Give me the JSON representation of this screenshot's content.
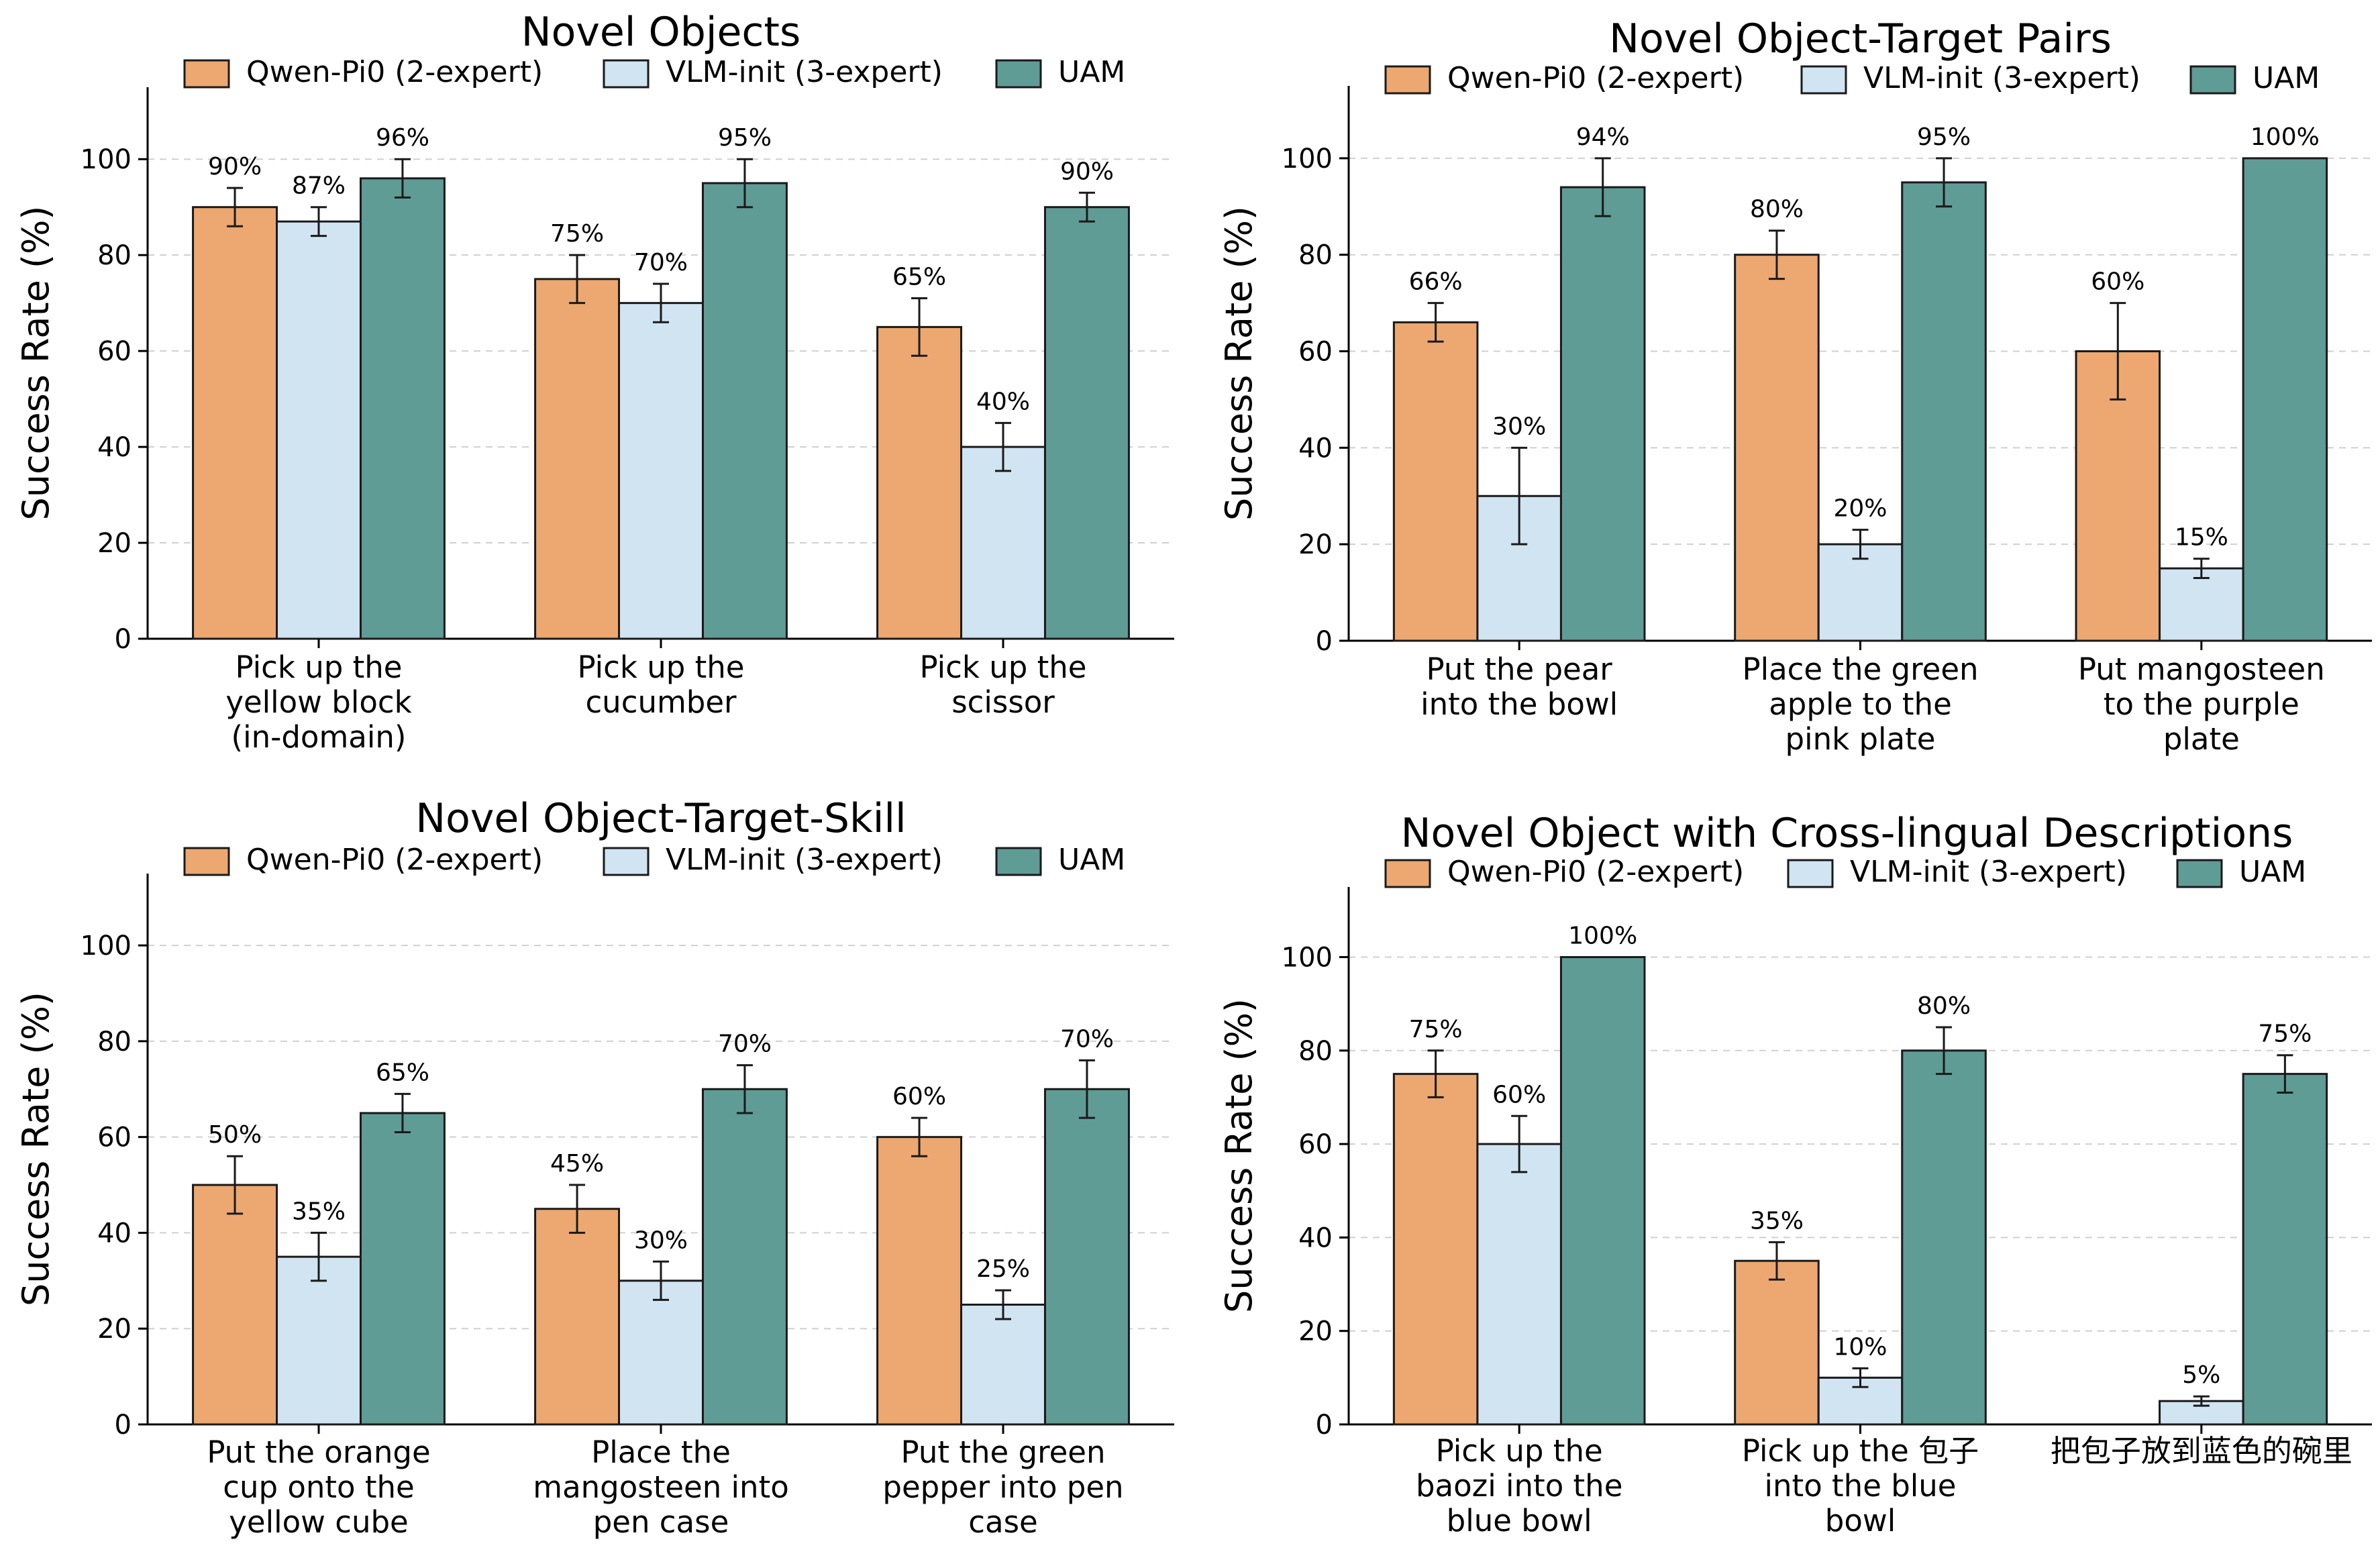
{
  "colors": {
    "Qwen-Pi0 (2-expert)": "#eca870",
    "VLM-init (3-expert)": "#d1e4f2",
    "UAM": "#5f9c95"
  },
  "chart_data": [
    {
      "type": "bar",
      "title": "Novel Objects",
      "ylabel": "Success Rate (%)",
      "ylim": [
        0,
        115
      ],
      "yticks": [
        0,
        20,
        40,
        60,
        80,
        100
      ],
      "grid": true,
      "legend": "top",
      "categories": [
        [
          "Pick up the",
          "yellow block",
          "(in-domain)"
        ],
        [
          "Pick up the",
          "cucumber"
        ],
        [
          "Pick up the",
          "scissor"
        ]
      ],
      "series": [
        {
          "name": "Qwen-Pi0 (2-expert)",
          "values": [
            90,
            75,
            65
          ],
          "errors": [
            4,
            5,
            6
          ],
          "labels": [
            "90%",
            "75%",
            "65%"
          ]
        },
        {
          "name": "VLM-init (3-expert)",
          "values": [
            87,
            70,
            40
          ],
          "errors": [
            3,
            4,
            5
          ],
          "labels": [
            "87%",
            "70%",
            "40%"
          ]
        },
        {
          "name": "UAM",
          "values": [
            96,
            95,
            90
          ],
          "errors": [
            4,
            5,
            3
          ],
          "labels": [
            "96%",
            "95%",
            "90%"
          ]
        }
      ]
    },
    {
      "type": "bar",
      "title": "Novel Object-Target Pairs",
      "ylabel": "Success Rate (%)",
      "ylim": [
        0,
        115
      ],
      "yticks": [
        0,
        20,
        40,
        60,
        80,
        100
      ],
      "grid": true,
      "legend": "top",
      "categories": [
        [
          "Put the pear",
          "into the bowl"
        ],
        [
          "Place the green",
          "apple to the",
          "pink plate"
        ],
        [
          "Put mangosteen",
          "to the purple",
          "plate"
        ]
      ],
      "series": [
        {
          "name": "Qwen-Pi0 (2-expert)",
          "values": [
            66,
            80,
            60
          ],
          "errors": [
            4,
            5,
            10
          ],
          "labels": [
            "66%",
            "80%",
            "60%"
          ]
        },
        {
          "name": "VLM-init (3-expert)",
          "values": [
            30,
            20,
            15
          ],
          "errors": [
            10,
            3,
            2
          ],
          "labels": [
            "30%",
            "20%",
            "15%"
          ]
        },
        {
          "name": "UAM",
          "values": [
            94,
            95,
            100
          ],
          "errors": [
            6,
            5,
            0
          ],
          "labels": [
            "94%",
            "95%",
            "100%"
          ]
        }
      ]
    },
    {
      "type": "bar",
      "title": "Novel Object-Target-Skill",
      "ylabel": "Success Rate (%)",
      "ylim": [
        0,
        115
      ],
      "yticks": [
        0,
        20,
        40,
        60,
        80,
        100
      ],
      "grid": true,
      "legend": "top",
      "categories": [
        [
          "Put the orange",
          "cup onto the",
          "yellow cube"
        ],
        [
          "Place the",
          "mangosteen into",
          "pen case"
        ],
        [
          "Put the green",
          "pepper into pen",
          "case"
        ]
      ],
      "series": [
        {
          "name": "Qwen-Pi0 (2-expert)",
          "values": [
            50,
            45,
            60
          ],
          "errors": [
            6,
            5,
            4
          ],
          "labels": [
            "50%",
            "45%",
            "60%"
          ]
        },
        {
          "name": "VLM-init (3-expert)",
          "values": [
            35,
            30,
            25
          ],
          "errors": [
            5,
            4,
            3
          ],
          "labels": [
            "35%",
            "30%",
            "25%"
          ]
        },
        {
          "name": "UAM",
          "values": [
            65,
            70,
            70
          ],
          "errors": [
            4,
            5,
            6
          ],
          "labels": [
            "65%",
            "70%",
            "70%"
          ]
        }
      ]
    },
    {
      "type": "bar",
      "title": "Novel Object with Cross-lingual Descriptions",
      "ylabel": "Success Rate (%)",
      "ylim": [
        0,
        115
      ],
      "yticks": [
        0,
        20,
        40,
        60,
        80,
        100
      ],
      "grid": true,
      "legend": "top",
      "categories": [
        [
          "Pick up the",
          "baozi into the",
          "blue bowl"
        ],
        [
          "Pick up the 包子",
          "into the blue",
          "bowl"
        ],
        [
          "把包子放到蓝色的碗里"
        ]
      ],
      "series": [
        {
          "name": "Qwen-Pi0 (2-expert)",
          "values": [
            75,
            35,
            0
          ],
          "errors": [
            5,
            4,
            0
          ],
          "labels": [
            "75%",
            "35%",
            ""
          ]
        },
        {
          "name": "VLM-init (3-expert)",
          "values": [
            60,
            10,
            5
          ],
          "errors": [
            6,
            2,
            1
          ],
          "labels": [
            "60%",
            "10%",
            "5%"
          ]
        },
        {
          "name": "UAM",
          "values": [
            100,
            80,
            75
          ],
          "errors": [
            0,
            5,
            4
          ],
          "labels": [
            "100%",
            "80%",
            "75%"
          ]
        }
      ]
    }
  ]
}
